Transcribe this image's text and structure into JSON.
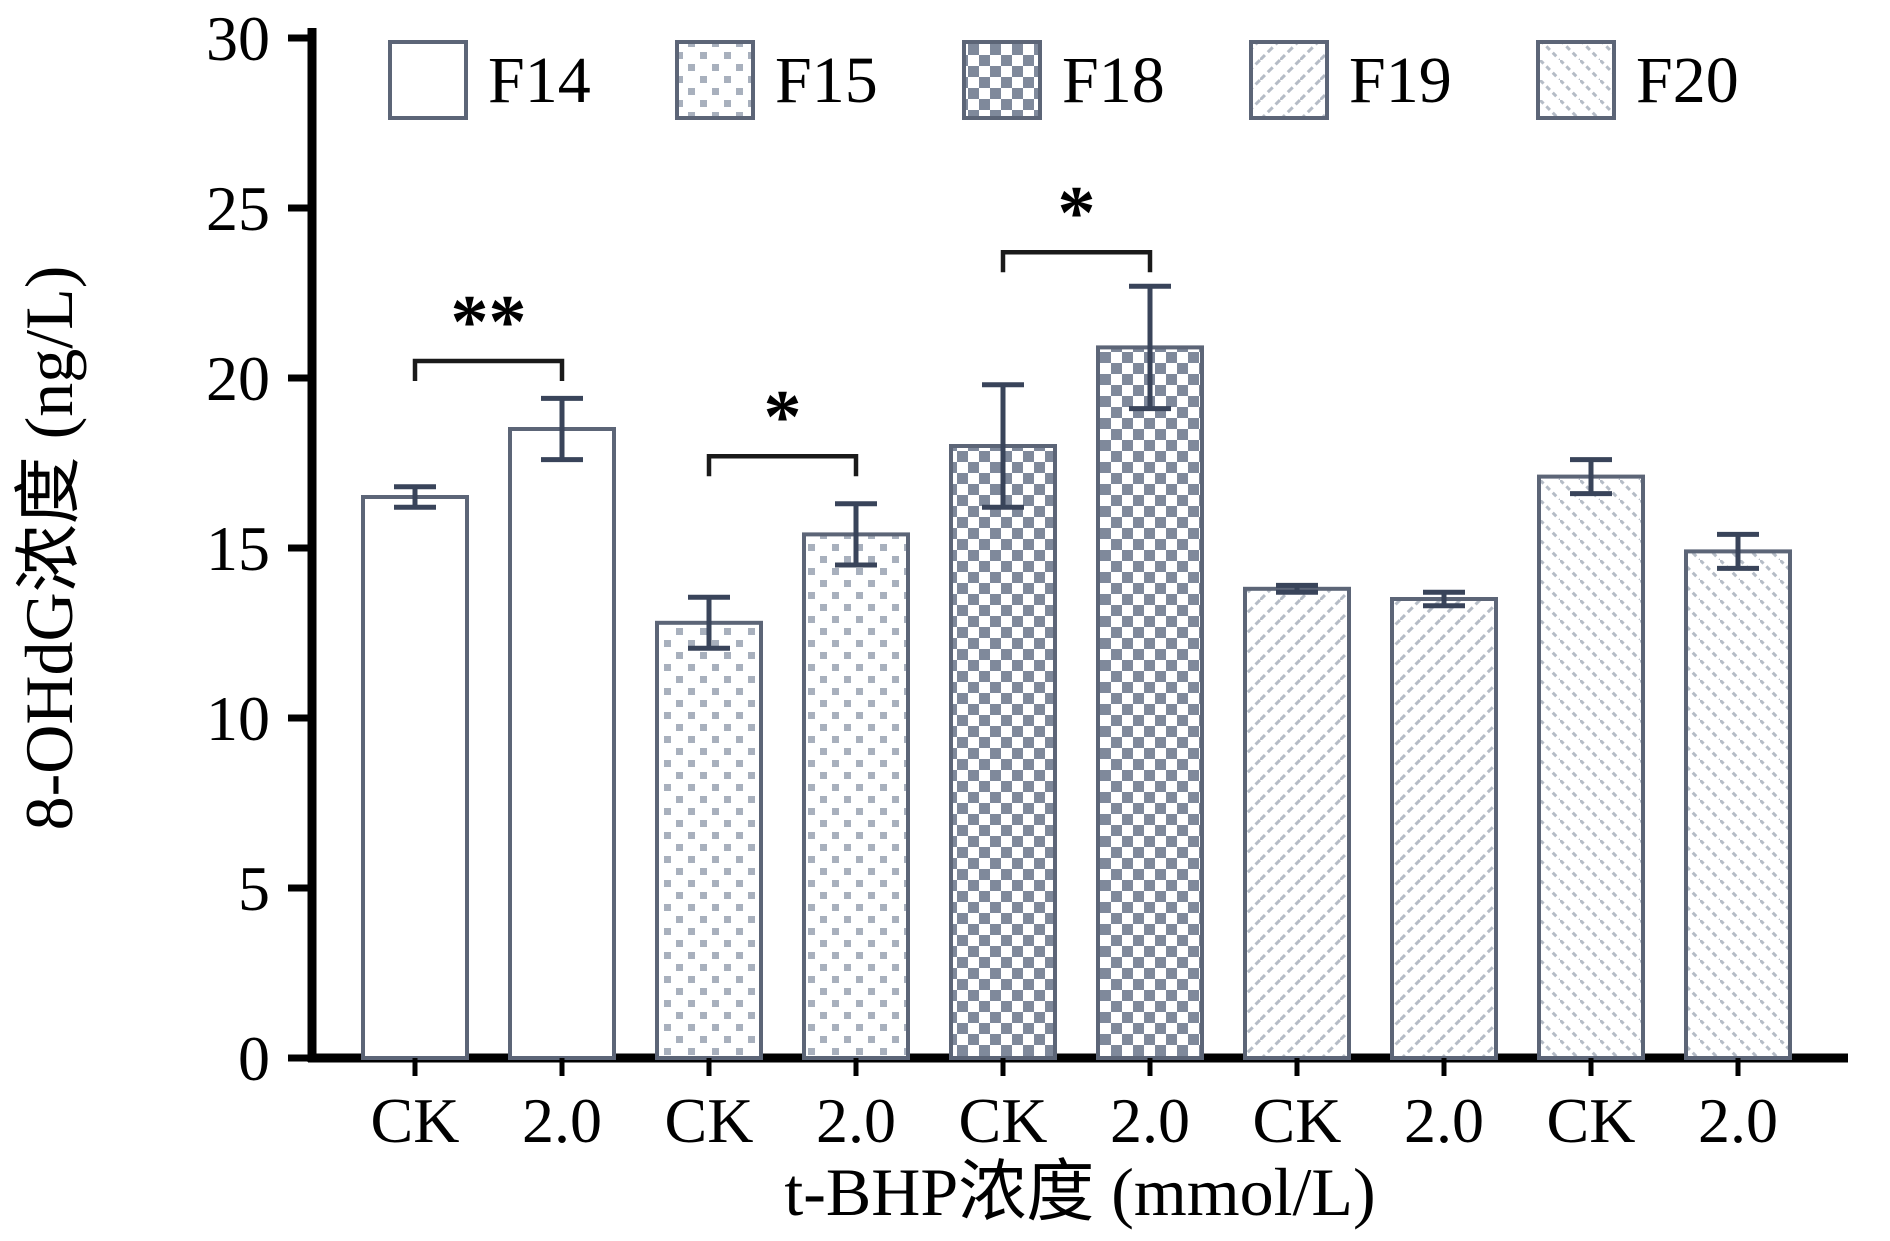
{
  "figure": {
    "background": "#ffffff"
  },
  "chart_data": {
    "type": "bar",
    "title": "",
    "xlabel": "t-BHP浓度 (mmol/L)",
    "ylabel": "8-OHdG浓度 (ng/L)",
    "ylim": [
      0,
      30
    ],
    "yticks": [
      0,
      5,
      10,
      15,
      20,
      25,
      30
    ],
    "categories": [
      "CK",
      "2.0"
    ],
    "grid": false,
    "legend_position": "top",
    "series": [
      {
        "name": "F14",
        "pattern": "plain",
        "values": [
          16.5,
          18.5
        ],
        "errors": [
          0.3,
          0.9
        ]
      },
      {
        "name": "F15",
        "pattern": "dots",
        "values": [
          12.8,
          15.4
        ],
        "errors": [
          0.75,
          0.9
        ]
      },
      {
        "name": "F18",
        "pattern": "checker",
        "values": [
          18.0,
          20.9
        ],
        "errors": [
          1.8,
          1.8
        ]
      },
      {
        "name": "F19",
        "pattern": "diagonal-forward",
        "values": [
          13.8,
          13.5
        ],
        "errors": [
          0.1,
          0.2
        ]
      },
      {
        "name": "F20",
        "pattern": "diagonal-back",
        "values": [
          17.1,
          14.9
        ],
        "errors": [
          0.5,
          0.5
        ]
      }
    ],
    "significance_brackets": [
      {
        "series": "F14",
        "between": [
          "CK",
          "2.0"
        ],
        "label": "**",
        "height": 20.5
      },
      {
        "series": "F15",
        "between": [
          "CK",
          "2.0"
        ],
        "label": "*",
        "height": 17.7
      },
      {
        "series": "F18",
        "between": [
          "CK",
          "2.0"
        ],
        "label": "*",
        "height": 23.7
      }
    ]
  },
  "colors": {
    "axis": "#000000",
    "bar_outline": "#5c6577",
    "checker_fill": "#7f899b",
    "dot_fill": "#a8b0bd",
    "hatch_line": "#b5bcc6",
    "error_bar": "#39445a",
    "bracket": "#1a1a1a",
    "background": "#ffffff"
  }
}
